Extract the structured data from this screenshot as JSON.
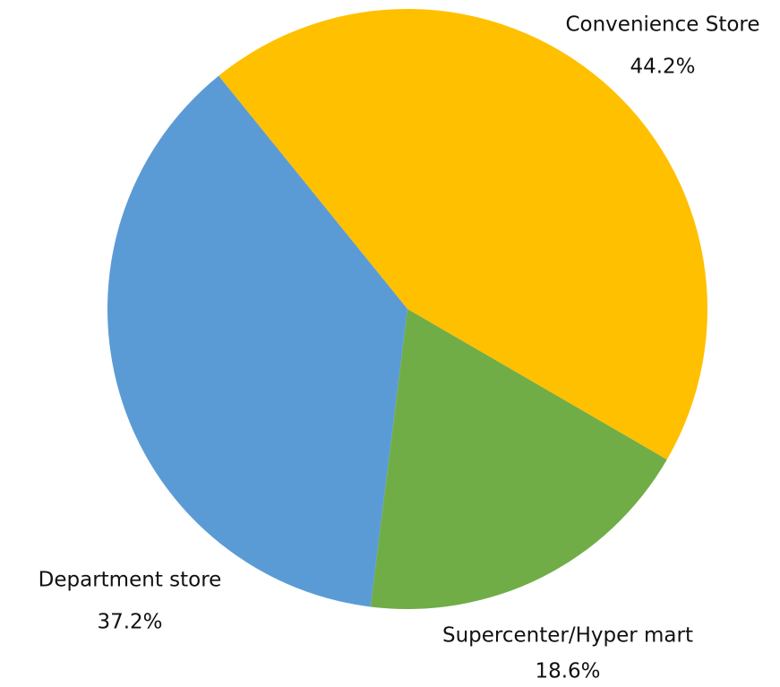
{
  "chart_data": {
    "type": "pie",
    "categories": [
      "Convenience Store",
      "Supercenter/Hyper mart",
      "Department store"
    ],
    "values": [
      44.2,
      18.6,
      37.2
    ],
    "value_labels": [
      "44.2%",
      "18.6%",
      "37.2%"
    ],
    "colors": [
      "#FFC000",
      "#70AD47",
      "#5B9BD5"
    ]
  }
}
